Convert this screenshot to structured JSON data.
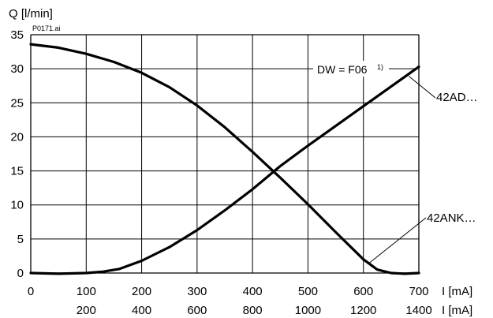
{
  "chart_data": {
    "type": "line",
    "title": "",
    "ylabel": "Q [l/min]",
    "xlabel": "I [mA]",
    "xlabel_secondary": "I [mA]",
    "file_tag": "P0171.ai",
    "grid": true,
    "xlim": [
      0,
      700
    ],
    "ylim": [
      0,
      35
    ],
    "x_ticks": [
      "0",
      "100",
      "200",
      "300",
      "400",
      "500",
      "600",
      "700"
    ],
    "x_ticks_secondary": [
      "200",
      "400",
      "600",
      "800",
      "1000",
      "1200",
      "1400"
    ],
    "y_ticks": [
      "0",
      "5",
      "10",
      "15",
      "20",
      "25",
      "30",
      "35"
    ],
    "series": [
      {
        "name": "42AD…",
        "x": [
          0,
          50,
          100,
          130,
          160,
          200,
          250,
          300,
          350,
          400,
          450,
          500,
          550,
          600,
          650,
          700
        ],
        "y": [
          0,
          -0.1,
          0,
          0.2,
          0.6,
          1.8,
          3.8,
          6.3,
          9.2,
          12.3,
          15.7,
          18.7,
          21.6,
          24.5,
          27.4,
          30.3
        ]
      },
      {
        "name": "42ANK…",
        "x": [
          0,
          50,
          100,
          150,
          200,
          250,
          300,
          350,
          400,
          450,
          500,
          550,
          600,
          625,
          650,
          675,
          700
        ],
        "y": [
          33.6,
          33.1,
          32.2,
          31.0,
          29.4,
          27.3,
          24.6,
          21.4,
          17.8,
          14.0,
          10.1,
          6.0,
          2.0,
          0.5,
          0,
          -0.1,
          0
        ]
      }
    ],
    "annotations": [
      {
        "text": "DW = F06",
        "superscript": "1)"
      }
    ]
  }
}
